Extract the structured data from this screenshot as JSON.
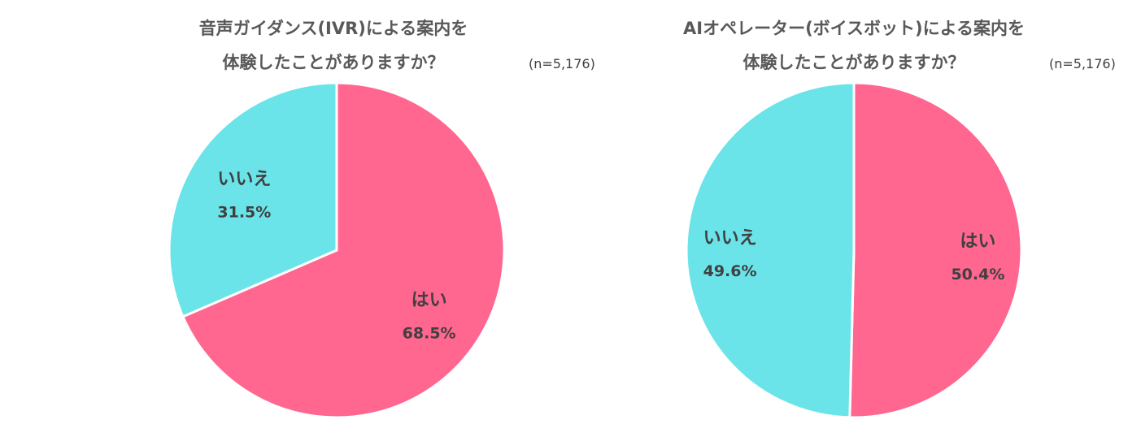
{
  "chart_data": [
    {
      "type": "pie",
      "title_lines": [
        "音声ガイダンス(IVR)による案内を",
        "体験したことがありますか？"
      ],
      "sample_size": "(n=5,176)",
      "slices": [
        {
          "label": "はい",
          "value": 68.5,
          "value_label": "68.5%",
          "color": "#FF6690"
        },
        {
          "label": "いいえ",
          "value": 31.5,
          "value_label": "31.5%",
          "color": "#6AE4E8"
        }
      ]
    },
    {
      "type": "pie",
      "title_lines": [
        "AIオペレーター(ボイスボット)による案内を",
        "体験したことがありますか？"
      ],
      "sample_size": "(n=5,176)",
      "slices": [
        {
          "label": "はい",
          "value": 50.4,
          "value_label": "50.4%",
          "color": "#FF6690"
        },
        {
          "label": "いいえ",
          "value": 49.6,
          "value_label": "49.6%",
          "color": "#6AE4E8"
        }
      ]
    }
  ]
}
